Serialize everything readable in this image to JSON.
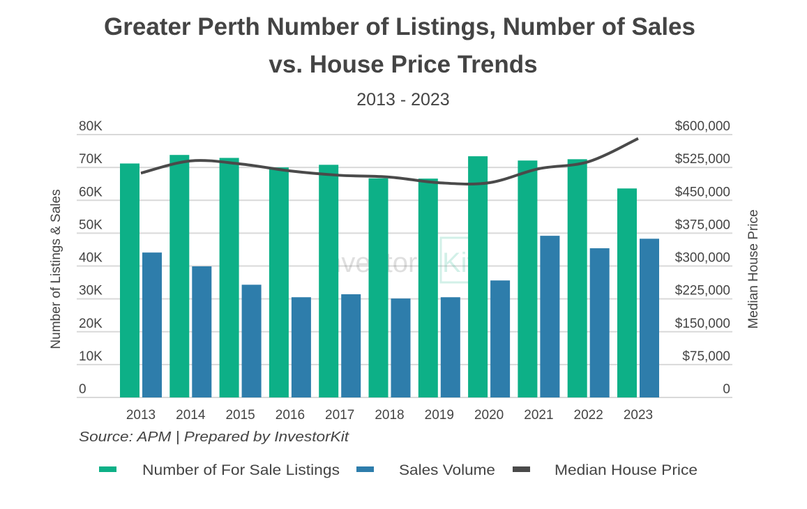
{
  "chart_data": {
    "type": "bar",
    "title": "Greater Perth Number of Listings, Number of Sales vs. House Price Trends",
    "title_lines": [
      "Greater Perth Number of Listings, Number of Sales",
      "vs. House Price Trends"
    ],
    "subtitle": "2013 - 2023",
    "categories": [
      "2013",
      "2014",
      "2015",
      "2016",
      "2017",
      "2018",
      "2019",
      "2020",
      "2021",
      "2022",
      "2023"
    ],
    "series": [
      {
        "name": "Number of For Sale Listings",
        "type": "bar",
        "axis": "left",
        "color": "#0db087",
        "values": [
          71200,
          73800,
          72900,
          70000,
          70800,
          66700,
          66600,
          73400,
          72100,
          72500,
          63600
        ]
      },
      {
        "name": "Sales Volume",
        "type": "bar",
        "axis": "left",
        "color": "#2e7dab",
        "values": [
          44100,
          39900,
          34300,
          30500,
          31400,
          30100,
          30500,
          35600,
          49200,
          45400,
          48300
        ]
      },
      {
        "name": "Median House Price",
        "type": "line",
        "axis": "right",
        "color": "#4a4a4a",
        "values": [
          512000,
          540000,
          533000,
          517000,
          507000,
          503000,
          490000,
          490000,
          522000,
          538000,
          591000
        ]
      }
    ],
    "ylabel": "Number of Listings & Sales",
    "ylim": [
      0,
      80000
    ],
    "yticks": [
      "0",
      "10K",
      "20K",
      "30K",
      "40K",
      "50K",
      "60K",
      "70K",
      "80K"
    ],
    "y2label": "Median House Price",
    "y2lim": [
      0,
      600000
    ],
    "y2ticks": [
      "0",
      "$75,000",
      "$150,000",
      "$225,000",
      "$300,000",
      "$375,000",
      "$450,000",
      "$525,000",
      "$600,000"
    ],
    "grid": true,
    "legend_position": "bottom",
    "source": "Source: APM | Prepared by InvestorKit",
    "watermark": "InvestorKit"
  }
}
